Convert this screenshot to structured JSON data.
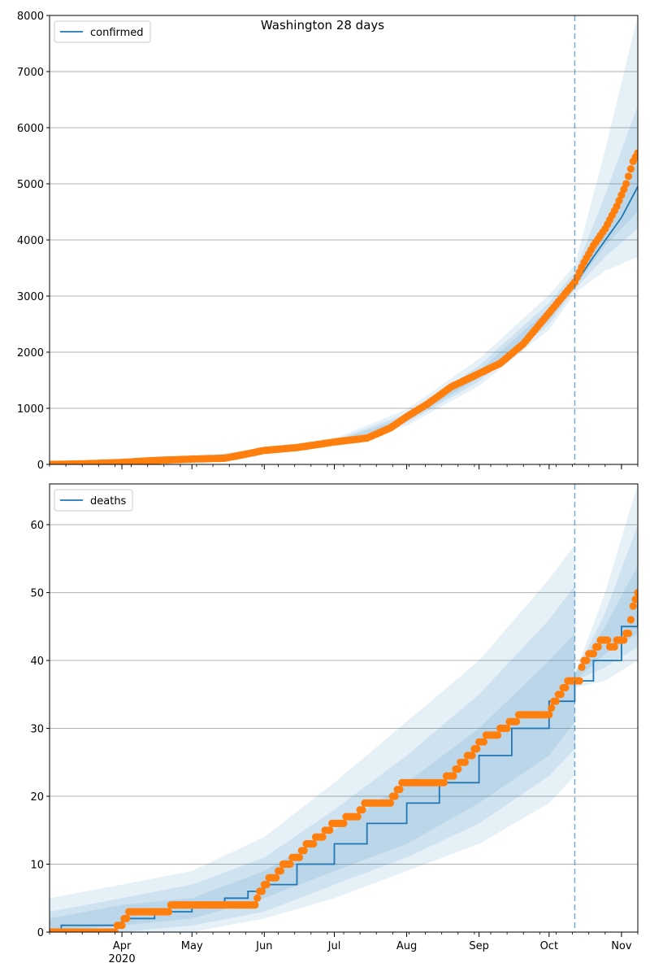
{
  "figure": {
    "title": "Washington 28 days"
  },
  "x_axis": {
    "tick_labels": [
      "Apr",
      "May",
      "Jun",
      "Jul",
      "Aug",
      "Sep",
      "Oct",
      "Nov"
    ],
    "year_label": "2020"
  },
  "colors": {
    "model_line": "#1f77b4",
    "observed_points": "#ff7f0e",
    "band": "#1f77b4",
    "grid": "#b0b0b0",
    "forecast_marker": "#1f77b4"
  },
  "chart_data": [
    {
      "type": "line",
      "panel": "top",
      "title": "Washington 28 days",
      "legend": {
        "entries": [
          "confirmed"
        ],
        "placement": "upper-left"
      },
      "x_range": [
        "2020-03-01",
        "2020-11-08"
      ],
      "ylim": [
        0,
        8000
      ],
      "yticks": [
        0,
        1000,
        2000,
        3000,
        4000,
        5000,
        6000,
        7000,
        8000
      ],
      "grid": "horizontal",
      "forecast_start": "2020-10-12",
      "series": [
        {
          "name": "confirmed",
          "kind": "model-line",
          "x": [
            "2020-03-01",
            "2020-03-15",
            "2020-04-01",
            "2020-04-15",
            "2020-05-01",
            "2020-05-15",
            "2020-06-01",
            "2020-06-15",
            "2020-07-01",
            "2020-07-15",
            "2020-08-01",
            "2020-08-15",
            "2020-09-01",
            "2020-09-15",
            "2020-10-01",
            "2020-10-12",
            "2020-10-20",
            "2020-11-01",
            "2020-11-08"
          ],
          "values": [
            0,
            10,
            40,
            80,
            100,
            130,
            250,
            310,
            390,
            500,
            800,
            1220,
            1580,
            1920,
            2650,
            3200,
            3700,
            4400,
            4950
          ]
        },
        {
          "name": "observed",
          "kind": "points",
          "x": [
            "2020-03-01",
            "2020-03-15",
            "2020-04-01",
            "2020-04-15",
            "2020-05-01",
            "2020-05-15",
            "2020-05-25",
            "2020-06-01",
            "2020-06-15",
            "2020-07-01",
            "2020-07-15",
            "2020-07-25",
            "2020-08-01",
            "2020-08-10",
            "2020-08-20",
            "2020-09-01",
            "2020-09-10",
            "2020-09-20",
            "2020-10-01",
            "2020-10-08",
            "2020-10-12",
            "2020-10-16",
            "2020-10-20",
            "2020-10-25",
            "2020-10-30",
            "2020-11-03",
            "2020-11-06",
            "2020-11-08"
          ],
          "values": [
            0,
            10,
            35,
            70,
            95,
            110,
            190,
            250,
            300,
            400,
            470,
            650,
            850,
            1080,
            1380,
            1620,
            1800,
            2150,
            2700,
            3050,
            3250,
            3600,
            3900,
            4200,
            4600,
            5000,
            5400,
            5550
          ]
        }
      ],
      "bands": [
        {
          "x": [
            "2020-03-01",
            "2020-05-01",
            "2020-06-01",
            "2020-07-01",
            "2020-08-01",
            "2020-09-01",
            "2020-10-01",
            "2020-10-12",
            "2020-10-25",
            "2020-11-08"
          ],
          "lower": [
            0,
            80,
            220,
            340,
            690,
            1400,
            2400,
            3050,
            3450,
            3700
          ],
          "upper": [
            0,
            130,
            290,
            460,
            980,
            1880,
            3020,
            3550,
            5600,
            8000
          ]
        },
        {
          "x": [
            "2020-03-01",
            "2020-05-01",
            "2020-06-01",
            "2020-07-01",
            "2020-08-01",
            "2020-09-01",
            "2020-10-01",
            "2020-10-12",
            "2020-10-25",
            "2020-11-08"
          ],
          "lower": [
            0,
            90,
            235,
            360,
            740,
            1480,
            2500,
            3120,
            3700,
            4200
          ],
          "upper": [
            0,
            120,
            275,
            430,
            900,
            1760,
            2880,
            3430,
            4800,
            6400
          ]
        },
        {
          "x": [
            "2020-03-01",
            "2020-05-01",
            "2020-06-01",
            "2020-07-01",
            "2020-08-01",
            "2020-09-01",
            "2020-10-01",
            "2020-10-12",
            "2020-10-25",
            "2020-11-08"
          ],
          "lower": [
            0,
            95,
            245,
            375,
            775,
            1540,
            2570,
            3160,
            3900,
            4500
          ],
          "upper": [
            0,
            110,
            262,
            410,
            840,
            1670,
            2780,
            3300,
            4300,
            5400
          ]
        }
      ]
    },
    {
      "type": "line",
      "panel": "bottom",
      "legend": {
        "entries": [
          "deaths"
        ],
        "placement": "upper-left"
      },
      "x_range": [
        "2020-03-01",
        "2020-11-08"
      ],
      "ylim": [
        0,
        66
      ],
      "yticks": [
        0,
        10,
        20,
        30,
        40,
        50,
        60
      ],
      "grid": "horizontal",
      "forecast_start": "2020-10-12",
      "series": [
        {
          "name": "deaths",
          "kind": "model-line",
          "x": [
            "2020-03-01",
            "2020-03-06",
            "2020-04-01",
            "2020-04-15",
            "2020-05-01",
            "2020-05-15",
            "2020-05-25",
            "2020-06-01",
            "2020-06-15",
            "2020-07-01",
            "2020-07-15",
            "2020-08-01",
            "2020-08-15",
            "2020-09-01",
            "2020-09-15",
            "2020-10-01",
            "2020-10-12",
            "2020-10-20",
            "2020-11-01",
            "2020-11-08"
          ],
          "values": [
            0,
            1,
            2,
            3,
            4,
            5,
            6,
            7,
            10,
            13,
            16,
            19,
            22,
            26,
            30,
            34,
            37,
            40,
            45,
            48.5
          ]
        },
        {
          "name": "observed",
          "kind": "points",
          "x": [
            "2020-03-01",
            "2020-03-28",
            "2020-04-01",
            "2020-04-05",
            "2020-04-20",
            "2020-04-23",
            "2020-05-15",
            "2020-05-28",
            "2020-06-01",
            "2020-06-05",
            "2020-06-10",
            "2020-06-15",
            "2020-06-20",
            "2020-06-25",
            "2020-07-01",
            "2020-07-10",
            "2020-07-15",
            "2020-07-25",
            "2020-07-28",
            "2020-08-01",
            "2020-08-10",
            "2020-08-15",
            "2020-08-20",
            "2020-08-25",
            "2020-08-28",
            "2020-09-05",
            "2020-09-08",
            "2020-09-12",
            "2020-09-20",
            "2020-09-28",
            "2020-10-01",
            "2020-10-05",
            "2020-10-10",
            "2020-10-14",
            "2020-10-16",
            "2020-10-20",
            "2020-10-24",
            "2020-10-28",
            "2020-11-01",
            "2020-11-04",
            "2020-11-06",
            "2020-11-08"
          ],
          "values": [
            0,
            0,
            1,
            3,
            3,
            4,
            4,
            4,
            7,
            8,
            10,
            11,
            13,
            14,
            16,
            17,
            19,
            19,
            21,
            22,
            22,
            22,
            23,
            25,
            26,
            29,
            29,
            30,
            32,
            32,
            32,
            35,
            37,
            37,
            40,
            41,
            43,
            42,
            43,
            44,
            48,
            50
          ]
        }
      ],
      "bands": [
        {
          "x": [
            "2020-03-01",
            "2020-04-01",
            "2020-05-01",
            "2020-06-01",
            "2020-07-01",
            "2020-08-01",
            "2020-09-01",
            "2020-10-01",
            "2020-10-12",
            "2020-10-12",
            "2020-10-25",
            "2020-11-08"
          ],
          "lower": [
            0,
            0,
            0,
            2,
            5,
            9,
            13,
            19,
            23,
            36,
            37,
            40
          ],
          "upper": [
            5,
            7,
            9,
            14,
            22,
            31,
            40,
            52,
            57,
            38,
            50,
            66
          ]
        },
        {
          "x": [
            "2020-03-01",
            "2020-04-01",
            "2020-05-01",
            "2020-06-01",
            "2020-07-01",
            "2020-08-01",
            "2020-09-01",
            "2020-10-01",
            "2020-10-12",
            "2020-10-12",
            "2020-10-25",
            "2020-11-08"
          ],
          "lower": [
            0,
            0,
            1,
            3,
            7,
            11,
            16,
            23,
            27,
            37,
            39,
            42
          ],
          "upper": [
            3,
            5,
            7,
            11,
            18,
            26,
            35,
            46,
            51,
            38,
            47,
            60
          ]
        },
        {
          "x": [
            "2020-03-01",
            "2020-04-01",
            "2020-05-01",
            "2020-06-01",
            "2020-07-01",
            "2020-08-01",
            "2020-09-01",
            "2020-10-01",
            "2020-10-12",
            "2020-10-12",
            "2020-10-25",
            "2020-11-08"
          ],
          "lower": [
            0,
            1,
            2,
            5,
            9,
            13,
            19,
            26,
            31,
            37,
            41,
            44
          ],
          "upper": [
            2,
            4,
            5,
            9,
            15,
            22,
            30,
            40,
            44,
            38,
            45,
            54
          ]
        }
      ]
    }
  ]
}
